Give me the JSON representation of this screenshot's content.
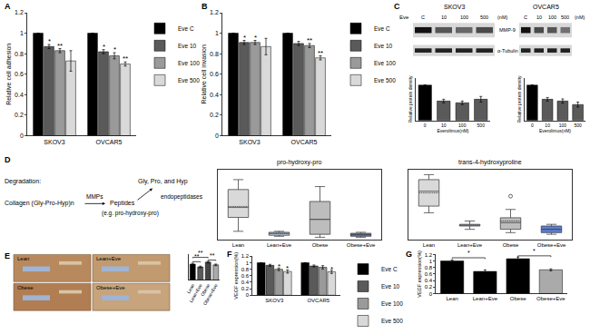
{
  "chart_data": [
    {
      "type": "bar",
      "categories": [
        "SKOV3",
        "OVCAR5"
      ],
      "ylabel": "Relative cell adhesion",
      "ylim": [
        0,
        1.2
      ],
      "yticks": [
        0,
        0.2,
        0.4,
        0.6,
        0.8,
        1,
        1.2
      ],
      "legend": "right",
      "series": [
        {
          "name": "Eve C",
          "color": "#000000",
          "values": [
            1,
            1
          ],
          "errors": [
            0,
            0
          ]
        },
        {
          "name": "Eve 10",
          "color": "#5a5a5a",
          "values": [
            0.87,
            0.82
          ],
          "errors": [
            0.02,
            0.02
          ]
        },
        {
          "name": "Eve 100",
          "color": "#9a9a9a",
          "values": [
            0.83,
            0.78
          ],
          "errors": [
            0.02,
            0.03
          ]
        },
        {
          "name": "Eve 500",
          "color": "#d9d9d9",
          "values": [
            0.73,
            0.7
          ],
          "errors": [
            0.1,
            0.02
          ]
        }
      ],
      "annotations": [
        {
          "text": "*",
          "category": "SKOV3",
          "series": "Eve 10",
          "y": 0.92
        },
        {
          "text": "**",
          "category": "SKOV3",
          "series": "Eve 100",
          "y": 0.88
        },
        {
          "text": "*",
          "category": "OVCAR5",
          "series": "Eve 10",
          "y": 0.87
        },
        {
          "text": "*",
          "category": "OVCAR5",
          "series": "Eve 100",
          "y": 0.84
        },
        {
          "text": "**",
          "category": "OVCAR5",
          "series": "Eve 500",
          "y": 0.75
        }
      ]
    },
    {
      "type": "bar",
      "categories": [
        "SKOV3",
        "OVCAR5"
      ],
      "ylabel": "Relative cell invasion",
      "ylim": [
        0,
        1.2
      ],
      "yticks": [
        0,
        0.2,
        0.4,
        0.6,
        0.8,
        1,
        1.2
      ],
      "legend": "right",
      "series": [
        {
          "name": "Eve C",
          "color": "#000000",
          "values": [
            1,
            1
          ],
          "errors": [
            0,
            0
          ]
        },
        {
          "name": "Eve 10",
          "color": "#5a5a5a",
          "values": [
            0.91,
            0.9
          ],
          "errors": [
            0.02,
            0.02
          ]
        },
        {
          "name": "Eve 100",
          "color": "#9a9a9a",
          "values": [
            0.91,
            0.88
          ],
          "errors": [
            0.02,
            0.02
          ]
        },
        {
          "name": "Eve 500",
          "color": "#d9d9d9",
          "values": [
            0.87,
            0.76
          ],
          "errors": [
            0.08,
            0.02
          ]
        }
      ],
      "annotations": [
        {
          "text": "*",
          "category": "SKOV3",
          "series": "Eve 10",
          "y": 0.96
        },
        {
          "text": "*",
          "category": "SKOV3",
          "series": "Eve 100",
          "y": 0.96
        },
        {
          "text": "**",
          "category": "OVCAR5",
          "series": "Eve 100",
          "y": 0.93
        },
        {
          "text": "**",
          "category": "OVCAR5",
          "series": "Eve 500",
          "y": 0.81
        }
      ]
    },
    {
      "type": "bar",
      "categories": [
        "0",
        "10",
        "100",
        "500"
      ],
      "xlabel": "Everolimus(nM)",
      "ylabel": "Relative protein density",
      "ylim": [
        0,
        1.2
      ],
      "tick_labels": "x",
      "values": [
        1,
        0.55,
        0.5,
        0.6
      ],
      "errors": [
        0,
        0.05,
        0.05,
        0.08
      ],
      "colors": [
        "#000000",
        "#5a5a5a",
        "#5a5a5a",
        "#5a5a5a"
      ]
    },
    {
      "type": "bar",
      "categories": [
        "0",
        "10",
        "100",
        "500"
      ],
      "xlabel": "Everolimus(nM)",
      "ylabel": "Relative protein density",
      "ylim": [
        0,
        1.2
      ],
      "tick_labels": "x",
      "values": [
        1,
        0.6,
        0.55,
        0.45
      ],
      "errors": [
        0,
        0.05,
        0.06,
        0.07
      ],
      "colors": [
        "#000000",
        "#5a5a5a",
        "#5a5a5a",
        "#5a5a5a"
      ]
    },
    {
      "type": "box",
      "title": "pro-hydroxy-pro",
      "categories": [
        "Lean",
        "Lean+Eve",
        "Obese",
        "Obese+Eve"
      ],
      "ylim": [
        0,
        7
      ],
      "tick_labels": "x",
      "colors": [
        "#d9d9d9",
        "#c6d4f0",
        "#bdbdbd",
        "#5b7fd6"
      ],
      "stats": [
        {
          "q1": 2.2,
          "median": 3.2,
          "q3": 5.0,
          "lower": 0.8,
          "upper": 6.0,
          "mean": 3.3
        },
        {
          "q1": 0.4,
          "median": 0.6,
          "q3": 0.7,
          "lower": 0.3,
          "upper": 0.8,
          "mean": 0.55
        },
        {
          "q1": 0.5,
          "median": 2.0,
          "q3": 3.8,
          "lower": 0.2,
          "upper": 5.3,
          "mean": 2.0
        },
        {
          "q1": 0.3,
          "median": 0.45,
          "q3": 0.6,
          "lower": 0.2,
          "upper": 0.7,
          "mean": 0.45
        }
      ],
      "outliers": [
        [],
        [],
        [],
        []
      ]
    },
    {
      "type": "box",
      "title": "trans-4-hydroxyproline",
      "categories": [
        "Lean",
        "Lean+Eve",
        "Obese",
        "Obese+Eve"
      ],
      "ylim": [
        0,
        4.2
      ],
      "tick_labels": "x",
      "colors": [
        "#d9d9d9",
        "#c6d4f0",
        "#bdbdbd",
        "#5b7fd6"
      ],
      "stats": [
        {
          "q1": 2.0,
          "median": 2.9,
          "q3": 3.6,
          "lower": 1.6,
          "upper": 3.9,
          "mean": 2.8
        },
        {
          "q1": 0.8,
          "median": 0.85,
          "q3": 0.9,
          "lower": 0.6,
          "upper": 1.1,
          "mean": 0.85
        },
        {
          "q1": 0.6,
          "median": 1.0,
          "q3": 1.3,
          "lower": 0.4,
          "upper": 1.8,
          "mean": 1.1
        },
        {
          "q1": 0.4,
          "median": 0.6,
          "q3": 0.8,
          "lower": 0.3,
          "upper": 0.9,
          "mean": 0.6
        }
      ],
      "outliers": [
        [],
        [],
        [
          2.6
        ],
        []
      ]
    },
    {
      "type": "bar",
      "categories": [
        "Lean",
        "Lean+Eve",
        "Obese",
        "Obese+Eve"
      ],
      "ylim": [
        0,
        1.6
      ],
      "tick_labels": "x",
      "values": [
        1.0,
        0.82,
        1.12,
        0.95
      ],
      "errors": [
        0.05,
        0.05,
        0.05,
        0.05
      ],
      "colors": [
        "#000000",
        "#5a5a5a",
        "#444444",
        "#aaaaaa"
      ],
      "brackets": [
        {
          "from": "Lean",
          "to": "Lean+Eve",
          "y": 1.15,
          "text": "**"
        },
        {
          "from": "Obese",
          "to": "Obese+Eve",
          "y": 1.25,
          "text": "**"
        },
        {
          "from": "Lean",
          "to": "Obese",
          "y": 1.42,
          "text": "**"
        }
      ]
    },
    {
      "type": "bar",
      "categories": [
        "SKOV3",
        "OVCAR5"
      ],
      "ylabel": "VEGF expression(%)",
      "ylim": [
        0,
        1.2
      ],
      "yticks": [
        0,
        0.2,
        0.4,
        0.6,
        0.8,
        1,
        1.2
      ],
      "legend": "right",
      "series": [
        {
          "name": "Eve C",
          "color": "#000000",
          "values": [
            1,
            1
          ],
          "errors": [
            0,
            0
          ]
        },
        {
          "name": "Eve 10",
          "color": "#5a5a5a",
          "values": [
            0.92,
            0.9
          ],
          "errors": [
            0.03,
            0.03
          ]
        },
        {
          "name": "Eve 100",
          "color": "#9a9a9a",
          "values": [
            0.8,
            0.86
          ],
          "errors": [
            0.04,
            0.05
          ]
        },
        {
          "name": "Eve 500",
          "color": "#d9d9d9",
          "values": [
            0.73,
            0.72
          ],
          "errors": [
            0.05,
            0.05
          ]
        }
      ],
      "annotations": [
        {
          "text": "*",
          "category": "SKOV3",
          "series": "Eve 100",
          "y": 0.88
        },
        {
          "text": "*",
          "category": "SKOV3",
          "series": "Eve 500",
          "y": 0.82
        },
        {
          "text": "*",
          "category": "OVCAR5",
          "series": "Eve 500",
          "y": 0.81
        }
      ]
    },
    {
      "type": "bar",
      "categories": [
        "Lean",
        "Lean+Eve",
        "Obese",
        "Obese+Eve"
      ],
      "ylabel": "VEGF expression(%)",
      "ylim": [
        0,
        1.2
      ],
      "yticks": [
        0,
        0.2,
        0.4,
        0.6,
        0.8,
        1,
        1.2
      ],
      "values": [
        1.0,
        0.68,
        1.07,
        0.73
      ],
      "errors": [
        0.03,
        0.05,
        0.05,
        0.03
      ],
      "colors": [
        "#000000",
        "#000000",
        "#000000",
        "#aaaaaa"
      ],
      "brackets": [
        {
          "from": "Lean",
          "to": "Lean+Eve",
          "y": 1.1,
          "text": "*"
        },
        {
          "from": "Obese",
          "to": "Obese+Eve",
          "y": 1.16,
          "text": "*"
        }
      ]
    }
  ],
  "figure_texts": {
    "panel_labels": [
      "A",
      "B",
      "C",
      "D",
      "E",
      "F",
      "G"
    ],
    "blots": {
      "drug": "Eve",
      "lanes": [
        "C",
        "10",
        "100",
        "500"
      ],
      "unit": "(nM)",
      "cell_lines": [
        "SKOV3",
        "OVCAR5"
      ],
      "proteins": [
        "MMP-9",
        "α-Tubulin"
      ]
    },
    "schematic": {
      "label": "Degradation:",
      "start": "Collagen (Gly-Pro-Hyp)n",
      "enzyme1": "MMPs",
      "middle": "Peptides",
      "example": "(e.g. pro-hydroxy-pro)",
      "enzyme2": "endopeptidases",
      "end": "Gly, Pro, and Hyp"
    },
    "histology": [
      "Lean",
      "Lean+Eve",
      "Obese",
      "Obese+Eve"
    ]
  }
}
